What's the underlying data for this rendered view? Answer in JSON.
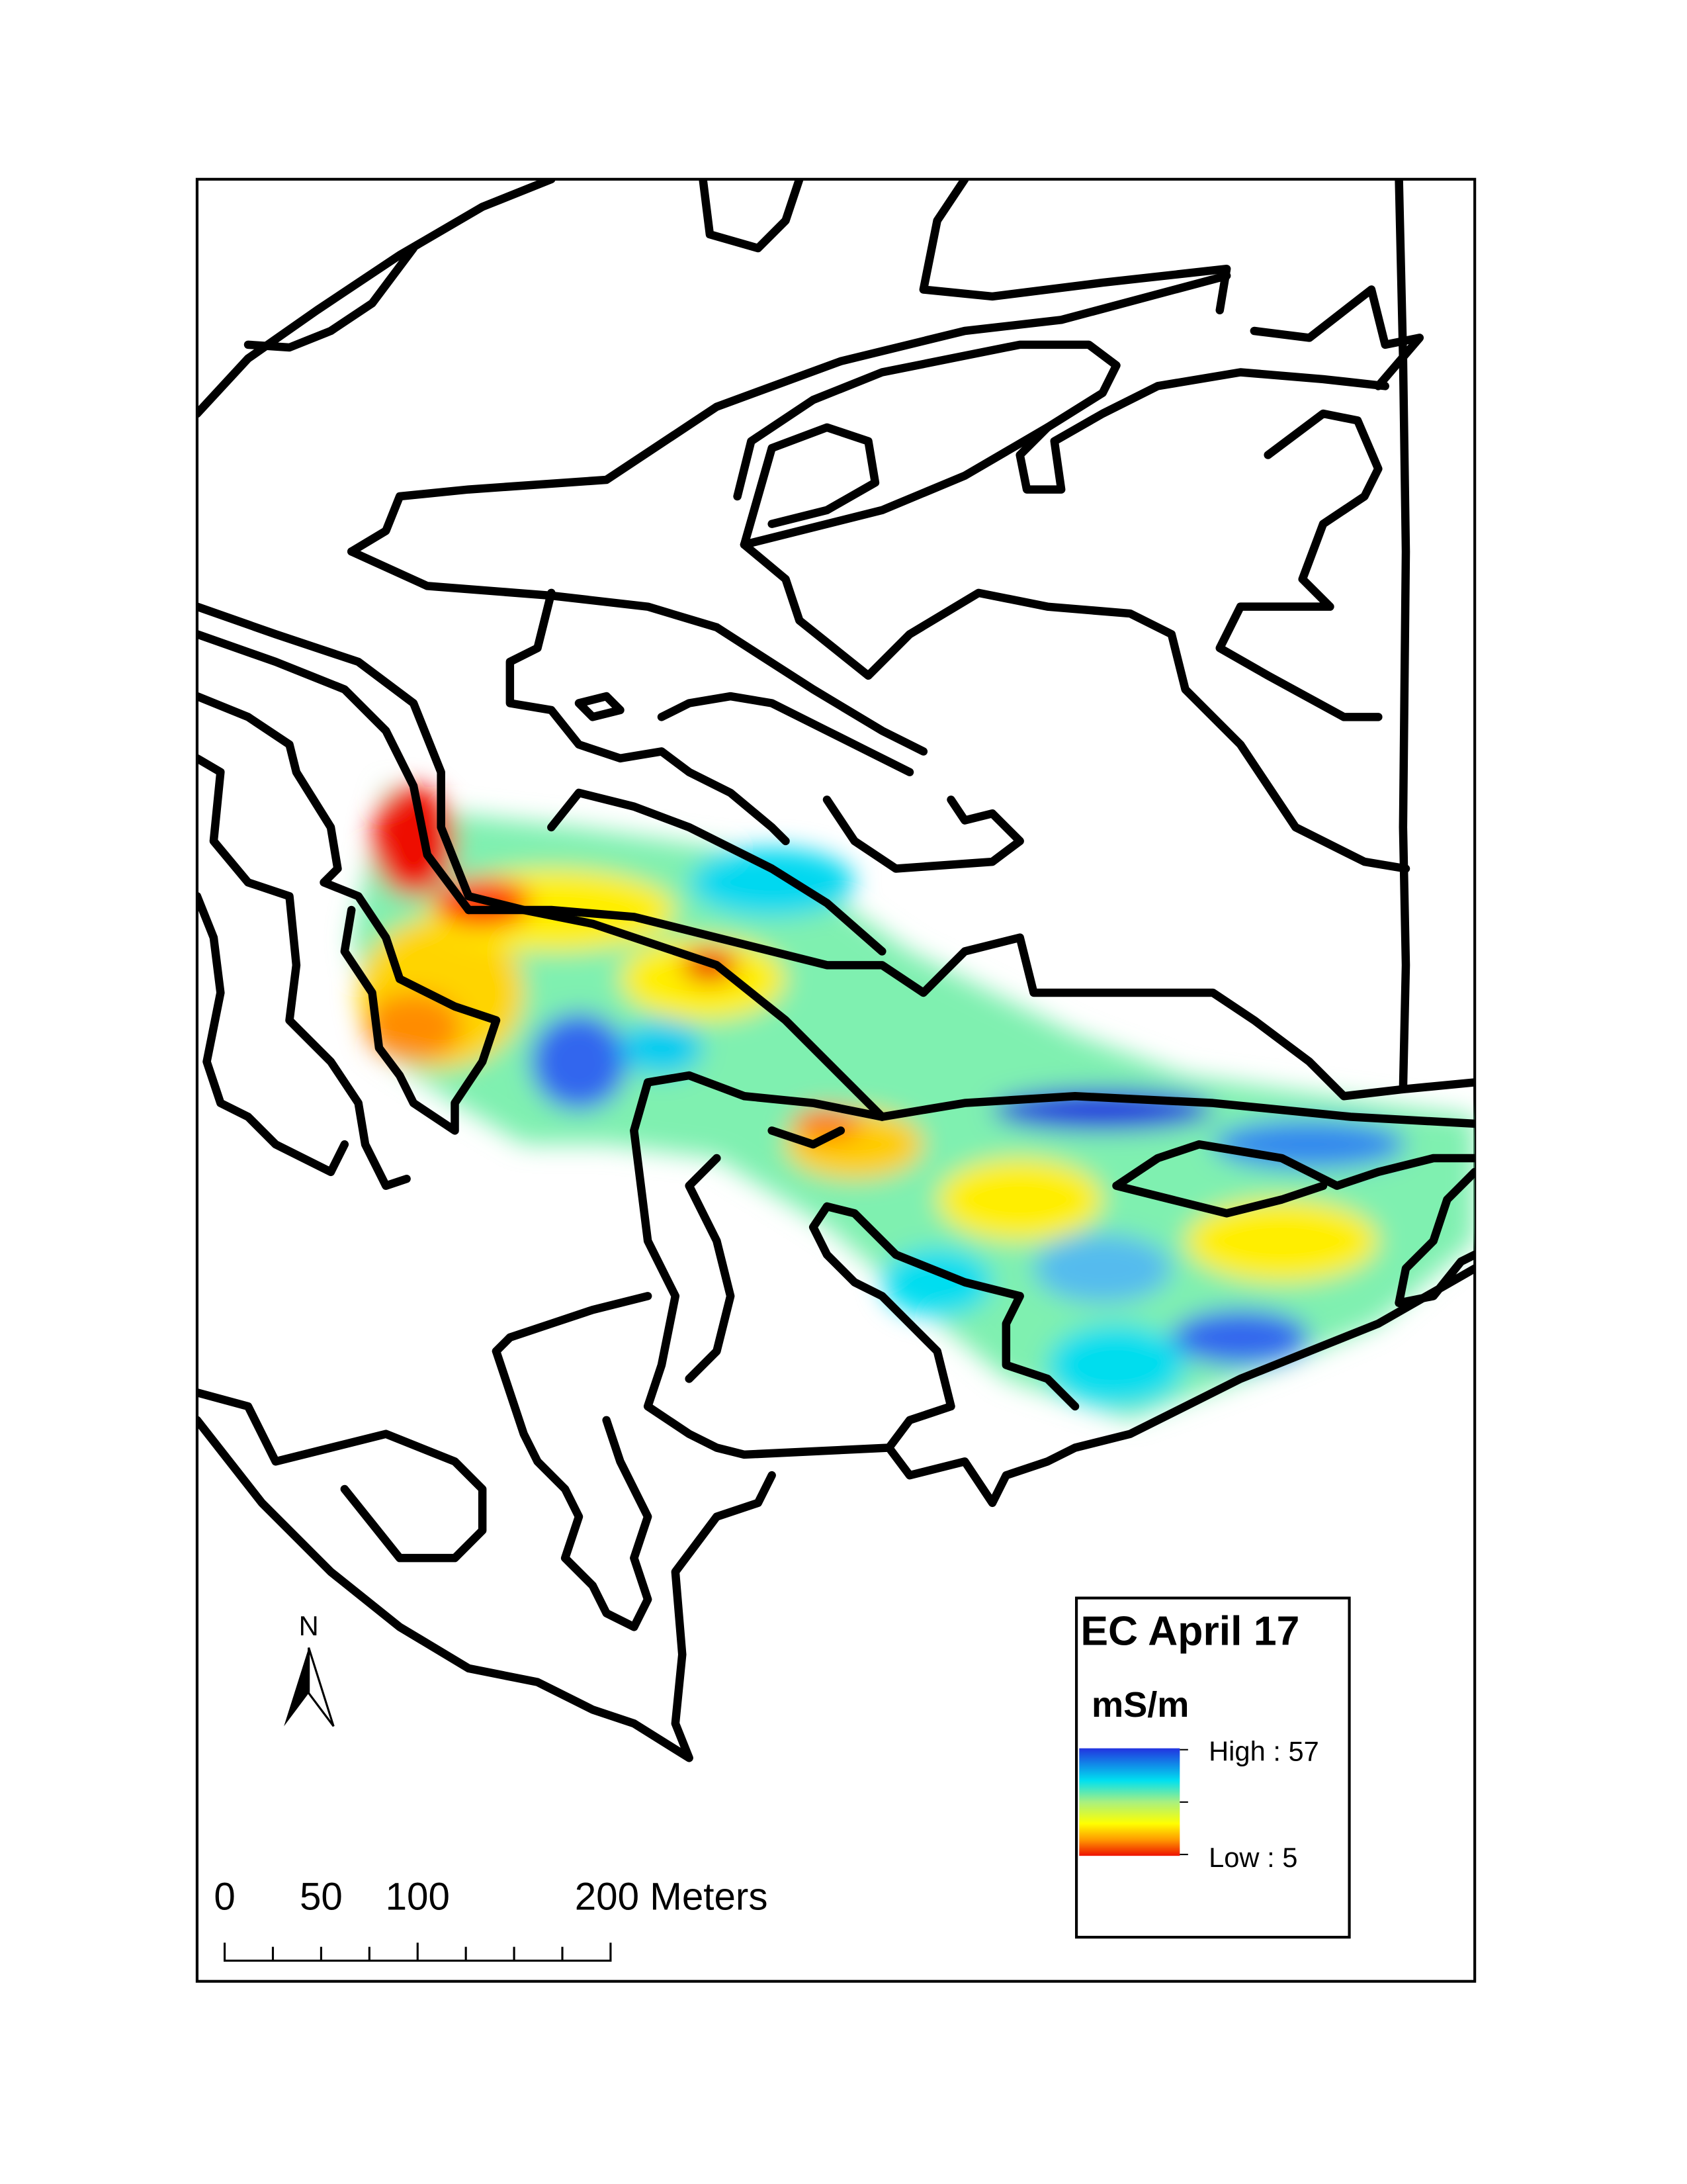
{
  "legend": {
    "title": "EC April 17",
    "unit": "mS/m",
    "high_label": "High : 57",
    "low_label": "Low : 5"
  },
  "north_arrow": {
    "label": "N"
  },
  "scale_bar": {
    "labels": [
      "0",
      "50",
      "100",
      "200 Meters"
    ]
  }
}
